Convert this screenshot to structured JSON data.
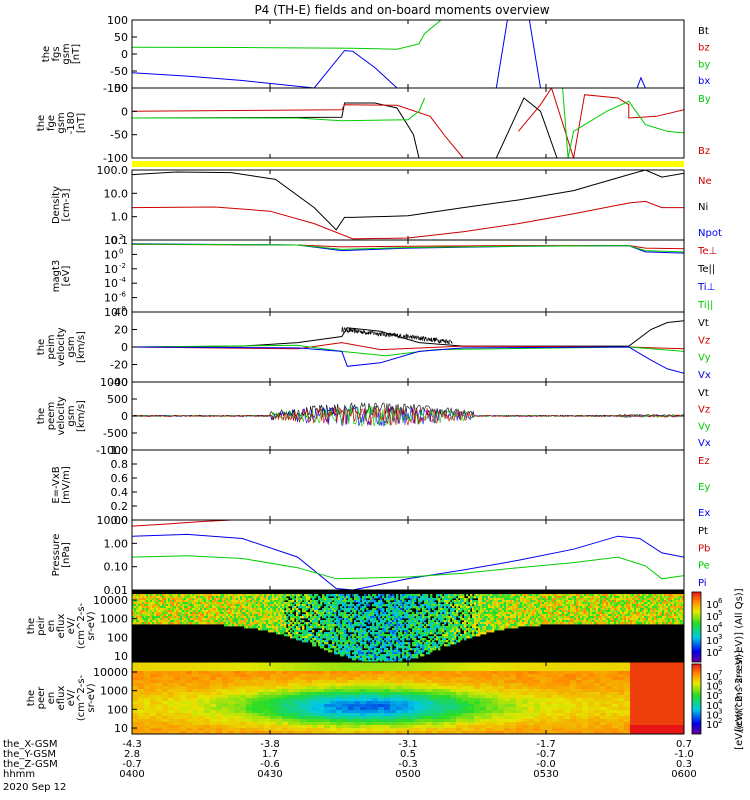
{
  "title": "P4 (TH-E) fields and on-board moments overview",
  "colors": {
    "black": "#000000",
    "red": "#cc0000",
    "green": "#00cc00",
    "blue": "#0000ee",
    "yellow": "#ffff00"
  },
  "chart_data": [
    {
      "type": "line",
      "panel": "fgs-gsm",
      "ylabel": [
        "the",
        "fgs",
        "gsm",
        "[nT]"
      ],
      "yticks": [
        "100",
        "50",
        "0",
        "-50",
        "-100"
      ],
      "ylim": [
        -100,
        100
      ],
      "legend": [
        {
          "name": "Bt",
          "color": "#000000"
        },
        {
          "name": "bz",
          "color": "#cc0000"
        },
        {
          "name": "by",
          "color": "#00cc00"
        },
        {
          "name": "bx",
          "color": "#0000ee"
        }
      ],
      "series": [
        {
          "name": "by",
          "color": "#00cc00",
          "x": [
            0,
            0.2,
            0.4,
            0.48,
            0.52,
            0.53,
            0.56,
            0.6
          ],
          "y": [
            20,
            19,
            17,
            14,
            30,
            60,
            100,
            100
          ]
        },
        {
          "name": "bx",
          "color": "#0000ee",
          "x": [
            0,
            0.1,
            0.2,
            0.33,
            0.385,
            0.4,
            0.44,
            0.48
          ],
          "y": [
            -55,
            -65,
            -78,
            -100,
            10,
            8,
            -40,
            -100
          ]
        },
        {
          "name": "bx-spike",
          "color": "#0000ee",
          "x": [
            0.66,
            0.68,
            0.72,
            0.74
          ],
          "y": [
            -100,
            100,
            100,
            -100
          ]
        },
        {
          "name": "bx-blip",
          "color": "#0000ee",
          "x": [
            0.915,
            0.922,
            0.93
          ],
          "y": [
            -100,
            -70,
            -100
          ]
        }
      ]
    },
    {
      "type": "line",
      "panel": "fge-gsm",
      "ylabel": [
        "the",
        "fge",
        "gsm",
        "-180",
        "[nT]"
      ],
      "yticks": [
        "50",
        "0",
        "-50",
        "-100"
      ],
      "ylim": [
        -120,
        90
      ],
      "legend": [
        {
          "name": "By",
          "color": "#00cc00"
        },
        {
          "name": "Bz",
          "color": "#cc0000"
        }
      ],
      "series": [
        {
          "name": "Bt",
          "color": "#000000",
          "x": [
            0,
            0.38,
            0.385,
            0.44,
            0.48,
            0.51,
            0.52
          ],
          "y": [
            0,
            2,
            45,
            45,
            30,
            -50,
            -120
          ]
        },
        {
          "name": "Bz",
          "color": "#cc0000",
          "x": [
            0,
            0.38,
            0.385,
            0.48,
            0.54,
            0.57,
            0.6
          ],
          "y": [
            20,
            25,
            40,
            38,
            5,
            -60,
            -120
          ]
        },
        {
          "name": "By",
          "color": "#00cc00",
          "x": [
            0,
            0.3,
            0.38,
            0.5,
            0.52,
            0.53
          ],
          "y": [
            0,
            0,
            -8,
            -5,
            20,
            60
          ]
        },
        {
          "name": "Bt-b",
          "color": "#000000",
          "x": [
            0.66,
            0.71,
            0.74,
            0.77
          ],
          "y": [
            -120,
            60,
            20,
            -120
          ]
        },
        {
          "name": "Bz-b",
          "color": "#cc0000",
          "x": [
            0.7,
            0.74,
            0.76,
            0.8,
            0.82,
            0.88,
            0.9,
            0.9,
            0.95,
            1.0
          ],
          "y": [
            -40,
            40,
            90,
            -120,
            70,
            60,
            40,
            0,
            5,
            25
          ]
        },
        {
          "name": "By-b",
          "color": "#00cc00",
          "x": [
            0.78,
            0.79,
            0.8,
            0.83,
            0.86,
            0.9,
            0.93,
            0.97,
            1.0
          ],
          "y": [
            90,
            -120,
            -40,
            -10,
            20,
            50,
            -20,
            -40,
            -45
          ]
        }
      ]
    },
    {
      "type": "line",
      "panel": "density",
      "ylabel": [
        "Density",
        "[cm-3]"
      ],
      "yticks": [
        "100.0",
        "10.0",
        "1.0",
        "0.1"
      ],
      "ylim": [
        0.08,
        200
      ],
      "yscale": "log",
      "legend": [
        {
          "name": "Ne",
          "color": "#cc0000"
        },
        {
          "name": "Ni",
          "color": "#000000"
        },
        {
          "name": "Npot",
          "color": "#0000ee"
        }
      ],
      "series": [
        {
          "name": "Ni",
          "color": "#000000",
          "x": [
            0,
            0.08,
            0.18,
            0.26,
            0.33,
            0.37,
            0.385,
            0.4,
            0.5,
            0.6,
            0.7,
            0.8,
            0.9,
            0.93,
            0.96,
            1.0
          ],
          "y": [
            120,
            160,
            150,
            70,
            3,
            0.25,
            1,
            1,
            1.2,
            3,
            7,
            20,
            120,
            200,
            90,
            140
          ]
        },
        {
          "name": "Ne",
          "color": "#cc0000",
          "x": [
            0,
            0.15,
            0.25,
            0.33,
            0.4,
            0.5,
            0.6,
            0.7,
            0.8,
            0.9,
            0.93,
            0.96,
            1.0
          ],
          "y": [
            3,
            3.2,
            2,
            0.5,
            0.09,
            0.1,
            0.2,
            0.5,
            1.5,
            5,
            6,
            3,
            3
          ]
        }
      ]
    },
    {
      "type": "line",
      "panel": "temperature",
      "ylabel": [
        "magt3",
        "[eV]"
      ],
      "yticks": [
        "10<sup>2</sup>",
        "10<sup>0</sup>",
        "10<sup>-2</sup>",
        "10<sup>-4</sup>",
        "10<sup>-6</sup>",
        "10<sup>-8</sup>"
      ],
      "yticks_plain": [
        "10",
        "10",
        "10",
        "10",
        "10",
        "10"
      ],
      "ytick_exp": [
        "2",
        "0",
        "-2",
        "-4",
        "-6",
        "-8"
      ],
      "ylim": [
        -9,
        2.5
      ],
      "yscale": "log",
      "legend": [
        {
          "name": "Te⊥",
          "color": "#cc0000"
        },
        {
          "name": "Te||",
          "color": "#000000"
        },
        {
          "name": "Ti⊥",
          "color": "#0000ee"
        },
        {
          "name": "Ti||",
          "color": "#00cc00"
        }
      ],
      "series": [
        {
          "name": "Te",
          "color": "#cc0000",
          "x": [
            0,
            0.3,
            0.38,
            0.5,
            0.7,
            0.9,
            0.93,
            1.0
          ],
          "y": [
            1.8,
            1.7,
            1.4,
            1.5,
            1.6,
            1.6,
            1.2,
            1.1
          ]
        },
        {
          "name": "Ti",
          "color": "#0000ee",
          "x": [
            0,
            0.3,
            0.38,
            0.5,
            0.7,
            0.9,
            0.93,
            1.0
          ],
          "y": [
            1.9,
            1.7,
            0.8,
            1.2,
            1.5,
            1.6,
            0.6,
            0.4
          ]
        },
        {
          "name": "Til",
          "color": "#00cc00",
          "x": [
            0,
            0.3,
            0.38,
            0.5,
            0.7,
            0.9,
            0.93,
            1.0
          ],
          "y": [
            1.85,
            1.7,
            1.0,
            1.3,
            1.5,
            1.6,
            0.8,
            0.6
          ]
        }
      ]
    },
    {
      "type": "line",
      "panel": "peim-velocity",
      "ylabel": [
        "the",
        "peim",
        "velocity",
        "gsm",
        "[km/s]"
      ],
      "yticks": [
        "40",
        "20",
        "0",
        "-20",
        "-40"
      ],
      "ylim": [
        -40,
        40
      ],
      "legend": [
        {
          "name": "Vt",
          "color": "#000000"
        },
        {
          "name": "Vz",
          "color": "#cc0000"
        },
        {
          "name": "Vy",
          "color": "#00cc00"
        },
        {
          "name": "Vx",
          "color": "#0000ee"
        }
      ],
      "series": [
        {
          "name": "Vt",
          "color": "#000000",
          "x": [
            0,
            0.2,
            0.3,
            0.38,
            0.39,
            0.45,
            0.52,
            0.6,
            0.9,
            0.94,
            0.97,
            1.0
          ],
          "y": [
            0,
            1,
            5,
            12,
            22,
            18,
            5,
            1,
            1,
            20,
            28,
            30
          ]
        },
        {
          "name": "Vz",
          "color": "#cc0000",
          "x": [
            0,
            0.3,
            0.38,
            0.45,
            0.6,
            0.9,
            1.0
          ],
          "y": [
            0,
            -2,
            5,
            -3,
            1,
            0,
            -2
          ]
        },
        {
          "name": "Vy",
          "color": "#00cc00",
          "x": [
            0,
            0.3,
            0.38,
            0.46,
            0.55,
            0.9,
            1.0
          ],
          "y": [
            0,
            2,
            -5,
            -10,
            -3,
            0,
            -5
          ]
        },
        {
          "name": "Vx",
          "color": "#0000ee",
          "x": [
            0,
            0.3,
            0.38,
            0.39,
            0.45,
            0.52,
            0.6,
            0.9,
            0.94,
            0.97,
            1.0
          ],
          "y": [
            0,
            -1,
            -5,
            -22,
            -18,
            -5,
            -1,
            0,
            -15,
            -25,
            -30
          ]
        }
      ]
    },
    {
      "type": "line",
      "panel": "peem-velocity",
      "ylabel": [
        "the",
        "peem",
        "velocity",
        "gsm",
        "[km/s]"
      ],
      "yticks": [
        "1000",
        "500",
        "0",
        "-500",
        "-1000"
      ],
      "ylim": [
        -1000,
        1000
      ],
      "legend": [
        {
          "name": "Vt",
          "color": "#000000"
        },
        {
          "name": "Vz",
          "color": "#cc0000"
        },
        {
          "name": "Vy",
          "color": "#00cc00"
        },
        {
          "name": "Vx",
          "color": "#0000ee"
        }
      ],
      "series": []
    },
    {
      "type": "line",
      "panel": "efield",
      "ylabel": [
        "E=-VxB",
        "[mV/m]"
      ],
      "yticks": [
        "1.0",
        "0.8",
        "0.6",
        "0.4",
        "0.2",
        "0.0"
      ],
      "ylim": [
        0,
        1
      ],
      "legend": [
        {
          "name": "Ez",
          "color": "#cc0000"
        },
        {
          "name": "Ey",
          "color": "#00cc00"
        },
        {
          "name": "Ex",
          "color": "#0000ee"
        }
      ],
      "series": []
    },
    {
      "type": "line",
      "panel": "pressure",
      "ylabel": [
        "Pressure",
        "[nPa]"
      ],
      "yticks": [
        "10.00",
        "1.00",
        "0.10",
        "0.01"
      ],
      "ylim": [
        0.005,
        30
      ],
      "yscale": "log",
      "legend": [
        {
          "name": "Pt",
          "color": "#000000"
        },
        {
          "name": "Pb",
          "color": "#cc0000"
        },
        {
          "name": "Pe",
          "color": "#00cc00"
        },
        {
          "name": "Pi",
          "color": "#0000ee"
        }
      ],
      "series": [
        {
          "name": "Pb",
          "color": "#cc0000",
          "x": [
            0,
            0.06,
            0.12,
            0.18,
            0.22
          ],
          "y": [
            14,
            18,
            24,
            30,
            30
          ]
        },
        {
          "name": "Pi",
          "color": "#0000ee",
          "x": [
            0,
            0.1,
            0.2,
            0.3,
            0.37,
            0.4,
            0.5,
            0.6,
            0.7,
            0.8,
            0.88,
            0.92,
            0.96,
            1.0
          ],
          "y": [
            4,
            5,
            3,
            0.3,
            0.006,
            0.005,
            0.02,
            0.06,
            0.2,
            0.8,
            4,
            3,
            0.5,
            0.3
          ]
        },
        {
          "name": "Pe",
          "color": "#00cc00",
          "x": [
            0,
            0.1,
            0.2,
            0.3,
            0.37,
            0.5,
            0.6,
            0.7,
            0.8,
            0.88,
            0.93,
            0.96,
            1.0
          ],
          "y": [
            0.3,
            0.35,
            0.25,
            0.08,
            0.02,
            0.025,
            0.04,
            0.08,
            0.15,
            0.3,
            0.1,
            0.02,
            0.03
          ]
        }
      ]
    },
    {
      "type": "heatmap",
      "panel": "peir-eflux",
      "ylabel": [
        "the",
        "peir",
        "en",
        "eflux",
        "eV/",
        "(cm^2-s-",
        "sr-eV)"
      ],
      "yticks": [
        "10000",
        "1000",
        "100",
        "10"
      ]
    },
    {
      "type": "heatmap",
      "panel": "peer-eflux",
      "ylabel": [
        "the",
        "peer",
        "en",
        "eflux",
        "eV/",
        "(cm^2-s-",
        "sr-eV)"
      ],
      "yticks": [
        "10000",
        "1000",
        "100",
        "10"
      ]
    }
  ],
  "colorbar": {
    "upper": {
      "ticks": [
        "6",
        "5",
        "4",
        "3",
        "2"
      ],
      "label": "[eV/(cm^2-s-sr-eV)] (All Qs)]"
    },
    "lower": {
      "ticks": [
        "7",
        "6",
        "5",
        "4",
        "3",
        "2"
      ],
      "label": "[eV/(cm^2-s-sr-eV)]"
    }
  },
  "xaxis": {
    "rows": [
      {
        "label": "the_X-GSM",
        "values": [
          "-4.3",
          "-3.8",
          "-3.1",
          "-1.7",
          "0.7"
        ]
      },
      {
        "label": "the_Y-GSM",
        "values": [
          "2.8",
          "1.7",
          "0.5",
          "-0.7",
          "-1.0"
        ]
      },
      {
        "label": "the_Z-GSM",
        "values": [
          "-0.7",
          "-0.6",
          "-0.3",
          "-0.0",
          "0.3"
        ]
      },
      {
        "label": "hhmm",
        "values": [
          "0400",
          "0430",
          "0500",
          "0530",
          "0600"
        ]
      }
    ],
    "date": "2020 Sep 12"
  }
}
